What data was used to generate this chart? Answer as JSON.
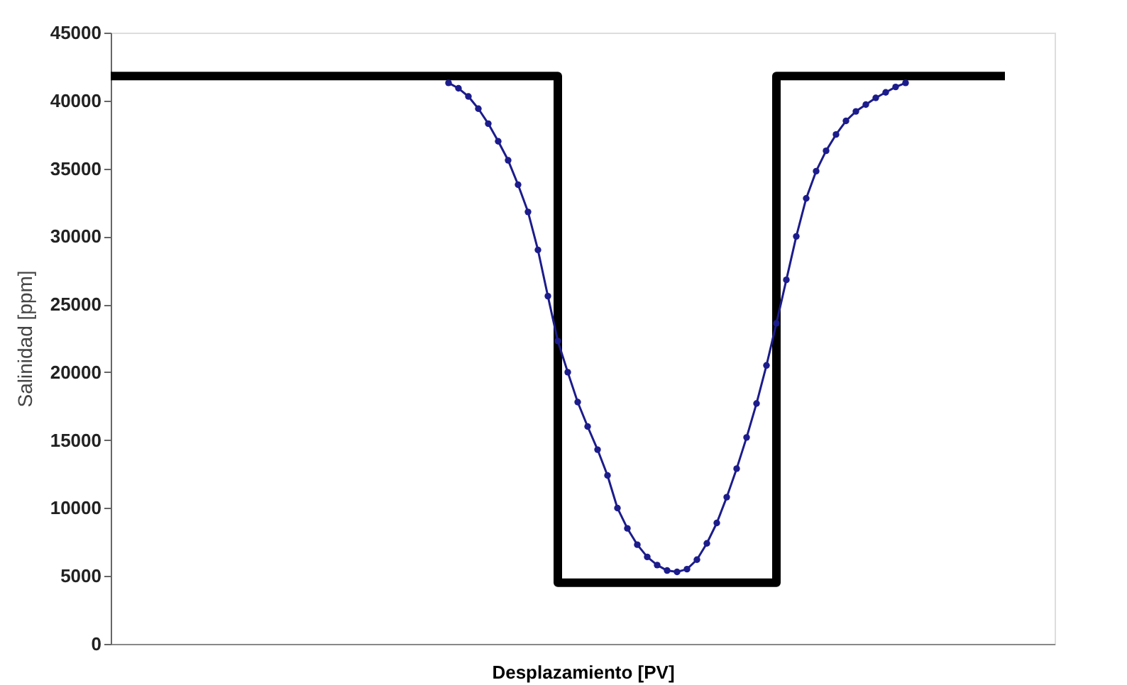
{
  "chart_data": {
    "type": "line",
    "xlabel": "Desplazamiento [PV]",
    "ylabel": "Salinidad [ppm]",
    "categories": [
      null,
      null,
      null,
      null,
      null,
      null,
      null,
      null,
      null,
      null,
      null,
      null,
      null,
      null,
      null,
      null,
      null,
      null,
      null,
      null,
      null,
      null,
      null,
      null,
      null,
      null,
      null,
      null,
      null,
      null,
      null,
      null,
      null,
      null,
      null,
      null,
      null,
      null,
      null,
      null,
      null,
      null,
      null,
      null,
      null,
      null,
      null,
      null,
      null,
      null,
      null,
      null,
      null,
      null,
      null,
      null,
      null,
      null,
      null,
      null,
      null,
      null,
      null,
      null,
      null,
      null,
      null,
      null,
      null,
      null,
      null,
      null,
      null,
      null,
      null,
      null,
      null,
      null,
      null,
      null,
      null,
      null,
      null,
      null,
      null,
      null,
      null,
      null,
      null,
      null,
      null,
      null,
      null,
      null,
      null,
      null
    ],
    "series": [
      {
        "type": "step",
        "color": "#000000",
        "marker": "none",
        "values": [
          41800,
          41800,
          41800,
          41800,
          41800,
          41800,
          41800,
          41800,
          41800,
          41800,
          41800,
          41800,
          41800,
          41800,
          41800,
          41800,
          41800,
          41800,
          41800,
          41800,
          41800,
          41800,
          41800,
          41800,
          41800,
          41800,
          41800,
          41800,
          41800,
          41800,
          41800,
          41800,
          41800,
          41800,
          41800,
          41800,
          41800,
          41800,
          41800,
          41800,
          41800,
          41800,
          41800,
          41800,
          41800,
          4500,
          4500,
          4500,
          4500,
          4500,
          4500,
          4500,
          4500,
          4500,
          4500,
          4500,
          4500,
          4500,
          4500,
          4500,
          4500,
          4500,
          4500,
          4500,
          4500,
          4500,
          4500,
          41800,
          41800,
          41800,
          41800,
          41800,
          41800,
          41800,
          41800,
          41800,
          41800,
          41800,
          41800,
          41800,
          41800,
          41800,
          41800,
          41800,
          41800,
          41800,
          41800,
          41800,
          41800,
          41800,
          41800,
          null,
          null,
          null,
          null,
          null
        ]
      },
      {
        "type": "line",
        "color": "#1c1c8c",
        "marker": "circle",
        "values": [
          null,
          null,
          null,
          null,
          null,
          null,
          null,
          null,
          null,
          null,
          null,
          null,
          null,
          null,
          null,
          null,
          null,
          null,
          null,
          null,
          null,
          null,
          null,
          null,
          null,
          null,
          null,
          null,
          null,
          null,
          null,
          null,
          null,
          null,
          41300,
          40900,
          40300,
          39400,
          38300,
          37000,
          35600,
          33800,
          31800,
          29000,
          25600,
          22300,
          20000,
          17800,
          16000,
          14300,
          12400,
          10000,
          8500,
          7300,
          6400,
          5800,
          5400,
          5300,
          5500,
          6200,
          7400,
          8900,
          10800,
          12900,
          15200,
          17700,
          20500,
          23600,
          26800,
          30000,
          32800,
          34800,
          36300,
          37500,
          38500,
          39200,
          39700,
          40200,
          40600,
          41000,
          41300,
          null,
          null,
          null,
          null,
          null,
          null,
          null,
          null,
          null,
          null,
          null,
          null,
          null,
          null,
          null
        ]
      }
    ],
    "ylim": [
      0,
      45000
    ],
    "yticks": [
      0,
      5000,
      10000,
      15000,
      20000,
      25000,
      30000,
      35000,
      40000,
      45000
    ],
    "tick_labels": "y",
    "grid": false,
    "legend": false
  }
}
